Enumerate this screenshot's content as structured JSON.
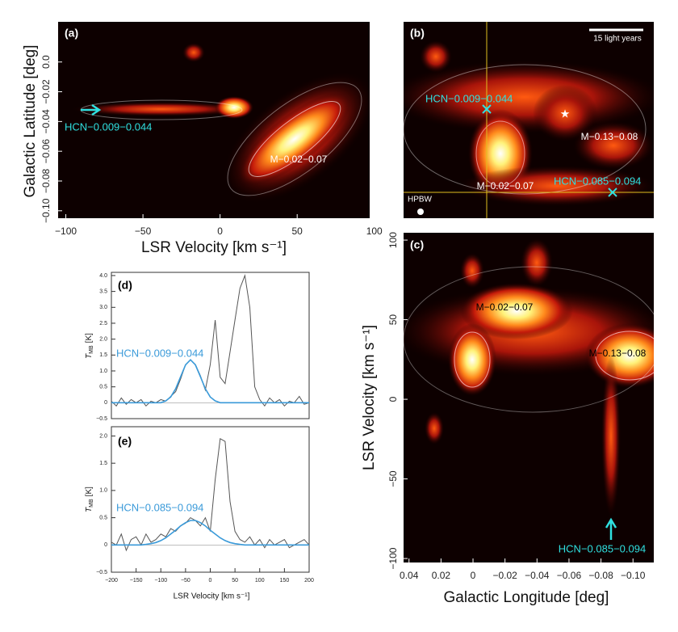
{
  "chart_data": [
    {
      "type": "heatmap",
      "xlabel": "LSR Velocity  [km s⁻¹]",
      "ylabel": "Galactic Latitude  [deg]",
      "xlim": [
        -105,
        97
      ],
      "ylim": [
        -0.105,
        0.027
      ],
      "xticks": [
        {
          "value": -100,
          "label": "−100"
        },
        {
          "value": -50,
          "label": "−50"
        },
        0,
        50,
        100
      ],
      "yticks": [
        {
          "value": 0,
          "label": "0.0"
        },
        {
          "value": -0.02,
          "label": "−0.02"
        },
        {
          "value": -0.04,
          "label": "−0.04"
        },
        {
          "value": -0.06,
          "label": "−0.06"
        },
        {
          "value": -0.08,
          "label": "−0.08"
        },
        {
          "value": -0.1,
          "label": "−0.10"
        }
      ],
      "annotations": [
        "(a)",
        "HCN−0.009−0.044",
        "M−0.02−0.07"
      ]
    },
    {
      "type": "heatmap",
      "annotations": [
        "(b)",
        "15 light years",
        "HCN−0.009−0.044",
        "HCN−0.085−0.094",
        "M−0.13−0.08",
        "M−0.02−0.07",
        "HPBW"
      ]
    },
    {
      "type": "heatmap",
      "xlabel": "Galactic Longitude  [deg]",
      "ylabel": "LSR Velocity  [km s⁻¹]",
      "xlim": [
        0.0434,
        -0.113
      ],
      "ylim": [
        -102.5,
        104.6
      ],
      "xticks": [
        0.04,
        0.02,
        0.0,
        {
          "value": -0.02,
          "label": "−0.02"
        },
        {
          "value": -0.04,
          "label": "−0.04"
        },
        {
          "value": -0.06,
          "label": "−0.06"
        },
        {
          "value": -0.08,
          "label": "−0.08"
        },
        {
          "value": -0.1,
          "label": "−0.10"
        }
      ],
      "yticks": [
        {
          "value": -100,
          "label": "−100"
        },
        {
          "value": -50,
          "label": "−50"
        },
        0,
        50,
        100
      ],
      "annotations": [
        "(c)",
        "M−0.02−0.07",
        "M−0.13−0.08",
        "HCN−0.085−0.094"
      ]
    },
    {
      "type": "line",
      "ylabel_symbol": "T",
      "ylabel_sub": "MB",
      "ylabel_unit": "[K]",
      "xlim": [
        -200,
        200
      ],
      "ylim": [
        -0.5,
        4.1
      ],
      "yticks": [
        {
          "value": -0.5,
          "label": "−0.5"
        },
        0,
        0.5,
        {
          "value": 1,
          "label": "1.0"
        },
        1.5,
        {
          "value": 2,
          "label": "2.0"
        },
        2.5,
        {
          "value": 3,
          "label": "3.0"
        },
        3.5,
        {
          "value": 4,
          "label": "4.0"
        }
      ],
      "x": [
        -200,
        -190,
        -180,
        -170,
        -160,
        -150,
        -140,
        -130,
        -120,
        -110,
        -100,
        -90,
        -80,
        -70,
        -60,
        -50,
        -40,
        -30,
        -20,
        -10,
        0,
        10,
        20,
        30,
        40,
        50,
        60,
        70,
        80,
        90,
        100,
        110,
        120,
        130,
        140,
        150,
        160,
        170,
        180,
        190,
        200
      ],
      "series": [
        {
          "color": "#555555",
          "values": [
            0.05,
            -0.1,
            0.15,
            -0.05,
            0.1,
            0.0,
            0.1,
            -0.1,
            0.05,
            0.0,
            0.1,
            0.05,
            0.2,
            0.35,
            0.75,
            1.2,
            1.35,
            1.2,
            0.85,
            0.4,
            1.2,
            2.6,
            0.8,
            0.6,
            1.6,
            2.6,
            3.6,
            4.0,
            3.0,
            0.5,
            0.1,
            -0.1,
            0.15,
            0.0,
            0.1,
            -0.1,
            0.05,
            0.0,
            0.2,
            -0.05,
            0.0
          ]
        },
        {
          "color": "#3a9ad9",
          "values": [
            0,
            0,
            0,
            0,
            0,
            0,
            0,
            0,
            0,
            0,
            0,
            0.06,
            0.18,
            0.44,
            0.82,
            1.19,
            1.35,
            1.19,
            0.82,
            0.44,
            0.18,
            0.06,
            0,
            0,
            0,
            0,
            0,
            0,
            0,
            0,
            0,
            0,
            0,
            0,
            0,
            0,
            0,
            0,
            0,
            0,
            0
          ]
        }
      ],
      "annotations": [
        "(d)",
        "HCN−0.009−0.044"
      ]
    },
    {
      "type": "line",
      "ylabel_symbol": "T",
      "ylabel_sub": "MB",
      "ylabel_unit": "[K]",
      "xlabel": "LSR Velocity  [km s⁻¹]",
      "xlim": [
        -200,
        200
      ],
      "ylim": [
        -0.5,
        2.17
      ],
      "xticks": [
        {
          "value": -200,
          "label": "−200"
        },
        {
          "value": -150,
          "label": "−150"
        },
        {
          "value": -100,
          "label": "−100"
        },
        {
          "value": -50,
          "label": "−50"
        },
        0,
        50,
        100,
        150,
        200
      ],
      "yticks": [
        {
          "value": -0.5,
          "label": "−0.5"
        },
        0,
        0.5,
        {
          "value": 1,
          "label": "1.0"
        },
        1.5,
        {
          "value": 2,
          "label": "2.0"
        }
      ],
      "x": [
        -200,
        -190,
        -180,
        -170,
        -160,
        -150,
        -140,
        -130,
        -120,
        -110,
        -100,
        -90,
        -80,
        -70,
        -60,
        -50,
        -40,
        -30,
        -20,
        -10,
        0,
        10,
        20,
        30,
        40,
        50,
        60,
        70,
        80,
        90,
        100,
        110,
        120,
        130,
        140,
        150,
        160,
        170,
        180,
        190,
        200
      ],
      "series": [
        {
          "color": "#555555",
          "values": [
            0.05,
            0.0,
            0.2,
            -0.1,
            0.1,
            0.15,
            0.0,
            0.2,
            0.05,
            0.1,
            0.2,
            0.15,
            0.3,
            0.25,
            0.35,
            0.4,
            0.5,
            0.45,
            0.35,
            0.5,
            0.25,
            1.2,
            1.95,
            1.9,
            0.8,
            0.25,
            0.1,
            0.05,
            0.15,
            0.0,
            0.1,
            -0.05,
            0.1,
            0.0,
            0.05,
            0.1,
            -0.05,
            0.0,
            0.05,
            0.1,
            0.0
          ]
        },
        {
          "color": "#3a9ad9",
          "values": [
            0,
            0,
            0,
            0,
            0,
            0,
            0,
            0.01,
            0.024,
            0.045,
            0.08,
            0.13,
            0.2,
            0.27,
            0.35,
            0.41,
            0.45,
            0.45,
            0.41,
            0.35,
            0.27,
            0.2,
            0.13,
            0.08,
            0.045,
            0.024,
            0.01,
            0,
            0,
            0,
            0,
            0,
            0,
            0,
            0,
            0,
            0,
            0,
            0,
            0,
            0
          ]
        }
      ],
      "annotations": [
        "(e)",
        "HCN−0.085−0.094"
      ]
    }
  ]
}
